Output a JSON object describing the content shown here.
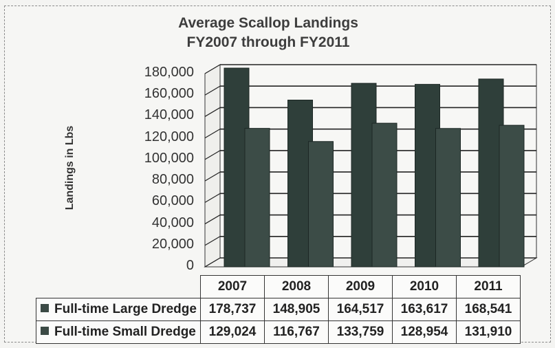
{
  "chart_data": {
    "type": "bar",
    "title": "Average Scallop Landings",
    "subtitle": "FY2007 through FY2011",
    "xlabel": "",
    "ylabel": "Landings in Lbs",
    "ylim": [
      0,
      180000
    ],
    "yticks": [
      "180,000",
      "160,000",
      "140,000",
      "120,000",
      "100,000",
      "80,000",
      "60,000",
      "40,000",
      "20,000",
      "0"
    ],
    "categories": [
      "2007",
      "2008",
      "2009",
      "2010",
      "2011"
    ],
    "series": [
      {
        "name": "Full-time Large Dredge",
        "values": [
          178737,
          148905,
          164517,
          163617,
          168541
        ],
        "labels": [
          "178,737",
          "148,905",
          "164,517",
          "163,617",
          "168,541"
        ]
      },
      {
        "name": "Full-time Small Dredge",
        "values": [
          129024,
          116767,
          133759,
          128954,
          131910
        ],
        "labels": [
          "129,024",
          "116,767",
          "133,759",
          "128,954",
          "131,910"
        ]
      }
    ],
    "grid": true,
    "colors": {
      "large": "#2f3f3a",
      "small": "#3c4c47",
      "grid": "#222222"
    }
  }
}
